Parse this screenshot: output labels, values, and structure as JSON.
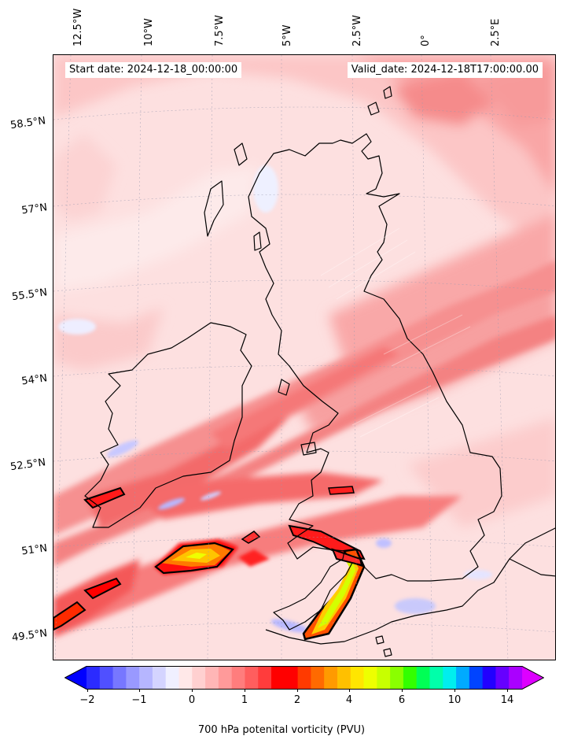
{
  "start_label": "Start date: 2024-12-18_00:00:00",
  "valid_label": "Valid_date: 2024-12-18T17:00:00.00",
  "lon_labels": [
    "12.5°W",
    "10°W",
    "7.5°W",
    "5°W",
    "2.5°W",
    "0°",
    "2.5°E"
  ],
  "lat_labels": [
    "58.5°N",
    "57°N",
    "55.5°N",
    "54°N",
    "52.5°N",
    "51°N",
    "49.5°N"
  ],
  "colorbar": {
    "label": "700 hPa potenital vorticity (PVU)",
    "tick_labels": [
      "−2",
      "−1",
      "0",
      "1",
      "2",
      "4",
      "6",
      "10",
      "14"
    ],
    "colors": [
      "#0000ff",
      "#2b2bff",
      "#5050ff",
      "#7777ff",
      "#9999ff",
      "#b6b6ff",
      "#d4d4ff",
      "#f0f0ff",
      "#ffe8e8",
      "#ffd0d0",
      "#ffb6b6",
      "#ff9a9a",
      "#ff7d7d",
      "#ff5e5e",
      "#ff3c3c",
      "#ff0000",
      "#ff0000",
      "#ff3a00",
      "#ff6a00",
      "#ff9a00",
      "#ffc000",
      "#ffe600",
      "#eeff00",
      "#c8ff00",
      "#8aff00",
      "#33ff00",
      "#00ff55",
      "#00ffaa",
      "#00eeee",
      "#00aaff",
      "#0044ff",
      "#2200ff",
      "#6600ff",
      "#aa00ff",
      "#dd00ff"
    ]
  }
}
